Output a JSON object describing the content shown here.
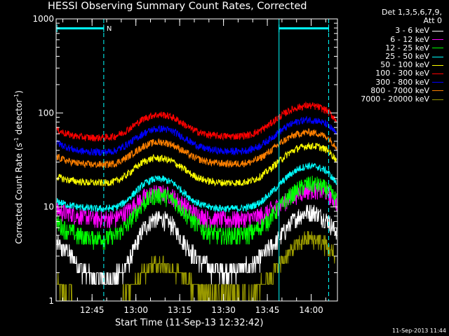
{
  "chart_data": {
    "type": "line",
    "title": "HESSI Observing Summary Count Rates, Corrected",
    "xlabel": "Start Time (11-Sep-13 12:32:42)",
    "ylabel": "Corrected Count Rate (s",
    "ylabel_sup1": "-1",
    "ylabel_mid": " detector",
    "ylabel_sup2": "-1",
    "ylabel_end": ")",
    "yscale": "log",
    "ylim": [
      1,
      1000
    ],
    "xlim": [
      "12:32:42",
      "14:09:00"
    ],
    "x_ticks": [
      "12:45",
      "13:00",
      "13:15",
      "13:30",
      "13:45",
      "14:00"
    ],
    "y_ticks": [
      "1",
      "10",
      "100",
      "1000"
    ],
    "legend_header": [
      "Det 1,3,5,6,7,9,",
      "Att 0"
    ],
    "timestamp": "11-Sep-2013 11:44",
    "annotation": "N",
    "status_bars": [
      {
        "start": "12:33",
        "end": "12:49",
        "color": "#00ffff"
      },
      {
        "start": "13:49",
        "end": "14:06",
        "color": "#00ffff"
      }
    ],
    "vlines": [
      "12:49",
      "13:49",
      "14:06"
    ],
    "series": [
      {
        "name": "3 - 6 keV",
        "color": "#ffffff",
        "values": [
          4.0,
          3.4,
          2.6,
          2.0,
          1.8,
          1.7,
          1.8,
          2.2,
          3.5,
          6.0,
          7.5,
          7.5,
          6.4,
          4.5,
          3.3,
          2.6,
          2.2,
          2.1,
          2.1,
          2.2,
          2.3,
          2.8,
          3.6,
          4.6,
          6.4,
          8.0,
          9.0,
          8.6,
          7.3,
          5.4
        ]
      },
      {
        "name": "6 - 12 keV",
        "color": "#ff00ff",
        "values": [
          9.2,
          8.8,
          8.2,
          7.8,
          7.6,
          7.5,
          7.6,
          8.6,
          10.5,
          12.8,
          14.0,
          14.0,
          13.0,
          11.0,
          9.0,
          8.0,
          7.5,
          7.4,
          7.4,
          7.5,
          7.6,
          8.0,
          9.0,
          10.5,
          12.2,
          14.0,
          15.2,
          15.2,
          14.2,
          11.5
        ]
      },
      {
        "name": "12 - 25 keV",
        "color": "#00ff00",
        "values": [
          6.6,
          5.8,
          5.1,
          4.8,
          4.7,
          4.7,
          4.9,
          6.0,
          8.2,
          11.2,
          13.2,
          13.4,
          12.2,
          9.5,
          7.2,
          5.9,
          5.3,
          5.0,
          5.0,
          5.1,
          5.3,
          6.0,
          7.5,
          9.8,
          12.7,
          15.4,
          17.6,
          17.3,
          15.6,
          11.9
        ]
      },
      {
        "name": "25 - 50 keV",
        "color": "#00ffff",
        "values": [
          11.5,
          10.6,
          10.1,
          9.8,
          9.6,
          9.6,
          9.8,
          11.2,
          14.0,
          17.6,
          19.8,
          19.8,
          18.2,
          14.8,
          12.0,
          10.5,
          9.9,
          9.7,
          9.6,
          9.7,
          10.0,
          11.1,
          13.5,
          17.0,
          21.5,
          25.4,
          27.5,
          26.8,
          24.0,
          18.0
        ]
      },
      {
        "name": "50 - 100 keV",
        "color": "#ffff00",
        "values": [
          21.0,
          19.5,
          18.8,
          18.3,
          18.1,
          18.1,
          18.6,
          21.0,
          25.5,
          30.5,
          33.0,
          32.8,
          30.5,
          26.0,
          22.0,
          19.8,
          18.6,
          18.2,
          18.1,
          18.2,
          18.8,
          20.8,
          24.8,
          30.5,
          37.2,
          42.3,
          44.7,
          44.2,
          40.5,
          31.8
        ]
      },
      {
        "name": "100 - 300 keV",
        "color": "#ff0000",
        "values": [
          66.0,
          60.0,
          56.5,
          55.0,
          54.5,
          54.7,
          56.5,
          63.0,
          74.0,
          87.0,
          95.0,
          96.0,
          90.0,
          78.0,
          67.0,
          61.0,
          58.0,
          57.0,
          56.5,
          57.0,
          58.5,
          64.0,
          75.0,
          90.0,
          105.0,
          115.0,
          120.0,
          117.0,
          106.0,
          84.0
        ]
      },
      {
        "name": "300 - 800 keV",
        "color": "#0000ff",
        "values": [
          48.0,
          43.5,
          40.0,
          38.8,
          38.4,
          38.5,
          39.5,
          44.5,
          52.0,
          61.0,
          67.0,
          68.0,
          64.0,
          56.0,
          48.0,
          43.0,
          40.5,
          39.4,
          39.0,
          39.3,
          40.5,
          44.5,
          52.0,
          62.5,
          73.5,
          81.5,
          85.0,
          83.0,
          75.5,
          60.0
        ]
      },
      {
        "name": "800 - 7000 keV",
        "color": "#ff8000",
        "values": [
          34.0,
          31.0,
          29.4,
          28.5,
          28.2,
          28.3,
          29.0,
          32.5,
          38.0,
          44.5,
          48.5,
          49.0,
          46.0,
          40.0,
          34.5,
          31.5,
          29.8,
          29.1,
          28.8,
          29.0,
          29.8,
          32.8,
          38.5,
          46.5,
          54.5,
          60.0,
          62.5,
          61.0,
          55.5,
          44.0
        ]
      },
      {
        "name": "7000 - 20000 keV",
        "color": "#999900",
        "values": [
          1.6,
          1.3,
          1.1,
          1.0,
          1.0,
          1.0,
          1.0,
          1.2,
          1.6,
          2.1,
          2.5,
          2.5,
          2.2,
          1.8,
          1.5,
          1.3,
          1.2,
          1.2,
          1.2,
          1.2,
          1.2,
          1.4,
          1.8,
          2.4,
          3.2,
          4.0,
          4.6,
          4.5,
          3.9,
          2.8
        ]
      }
    ],
    "series_start": "12:33",
    "series_step_minutes": 3.3
  }
}
